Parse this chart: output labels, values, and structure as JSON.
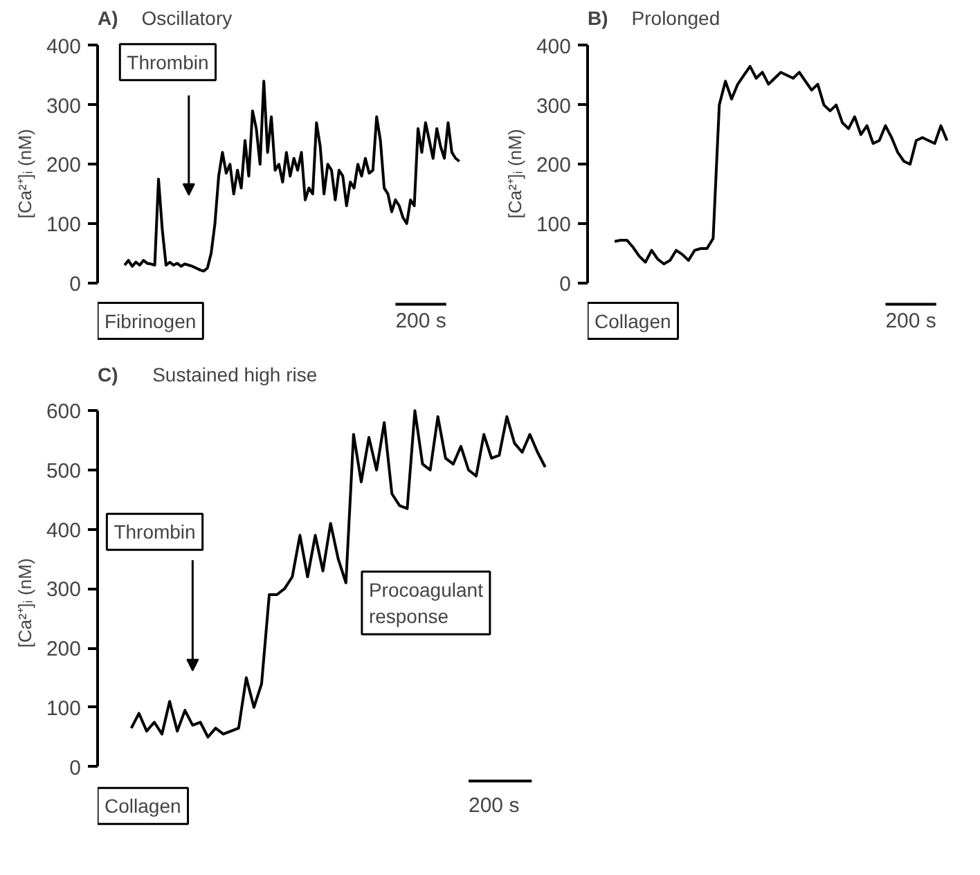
{
  "chart_data": [
    {
      "type": "line",
      "title": "A)",
      "subtitle": "Oscillatory",
      "ylabel": "[Ca²⁺]ᵢ (nM)",
      "tick_labels": "y",
      "ylim": [
        0,
        400
      ],
      "yticks": [
        0,
        100,
        200,
        300,
        400
      ],
      "grid": false,
      "categories": [
        null,
        null,
        null,
        null,
        null,
        null,
        null,
        null,
        null,
        null,
        null,
        null,
        null,
        null,
        null,
        null,
        null,
        null,
        null,
        null,
        null,
        null,
        null,
        null,
        null,
        null,
        null,
        null,
        null,
        null,
        null,
        null,
        null,
        null,
        null,
        null,
        null,
        null,
        null,
        null,
        null,
        null,
        null,
        null,
        null,
        null,
        null,
        null,
        null,
        null,
        null,
        null,
        null,
        null,
        null,
        null,
        null,
        null,
        null,
        null,
        null,
        null,
        null,
        null,
        null,
        null,
        null,
        null,
        null,
        null,
        null,
        null,
        null,
        null,
        null,
        null,
        null,
        null,
        null,
        null,
        null,
        null,
        null,
        null,
        null,
        null,
        null,
        null,
        null,
        null
      ],
      "series": [
        {
          "color": "#000000",
          "values": [
            30,
            38,
            28,
            35,
            30,
            38,
            33,
            32,
            30,
            175,
            90,
            30,
            35,
            30,
            33,
            28,
            32,
            30,
            28,
            25,
            22,
            20,
            25,
            50,
            100,
            180,
            220,
            185,
            200,
            150,
            190,
            160,
            240,
            180,
            290,
            260,
            200,
            340,
            220,
            280,
            190,
            200,
            170,
            220,
            180,
            210,
            190,
            220,
            140,
            160,
            150,
            270,
            230,
            150,
            200,
            190,
            140,
            190,
            180,
            130,
            170,
            160,
            200,
            180,
            210,
            185,
            190,
            280,
            240,
            160,
            150,
            120,
            140,
            130,
            110,
            100,
            140,
            130,
            260,
            220,
            270,
            240,
            210,
            260,
            230,
            210,
            270,
            220,
            210,
            205
          ]
        }
      ],
      "annotations": [
        "Thrombin",
        "Fibrinogen",
        "200 s"
      ]
    },
    {
      "type": "line",
      "title": "B)",
      "subtitle": "Prolonged",
      "ylabel": "[Ca²⁺]ᵢ (nM)",
      "tick_labels": "y",
      "ylim": [
        0,
        400
      ],
      "yticks": [
        0,
        100,
        200,
        300,
        400
      ],
      "grid": false,
      "categories": [
        null,
        null,
        null,
        null,
        null,
        null,
        null,
        null,
        null,
        null,
        null,
        null,
        null,
        null,
        null,
        null,
        null,
        null,
        null,
        null,
        null,
        null,
        null,
        null,
        null,
        null,
        null,
        null,
        null,
        null,
        null,
        null,
        null,
        null,
        null,
        null,
        null,
        null,
        null,
        null,
        null,
        null,
        null,
        null,
        null,
        null,
        null,
        null,
        null,
        null,
        null,
        null,
        null,
        null,
        null
      ],
      "series": [
        {
          "color": "#000000",
          "values": [
            70,
            72,
            72,
            60,
            45,
            35,
            55,
            40,
            32,
            38,
            55,
            48,
            38,
            55,
            58,
            58,
            75,
            300,
            340,
            310,
            335,
            350,
            365,
            345,
            355,
            335,
            345,
            355,
            350,
            345,
            355,
            340,
            325,
            335,
            300,
            290,
            300,
            270,
            260,
            280,
            250,
            265,
            235,
            240,
            265,
            245,
            220,
            205,
            200,
            240,
            245,
            240,
            235,
            265,
            240
          ]
        }
      ],
      "annotations": [
        "Collagen",
        "200 s"
      ]
    },
    {
      "type": "line",
      "title": "C)",
      "subtitle": "Sustained high rise",
      "ylabel": "[Ca²⁺]ᵢ (nM)",
      "tick_labels": "y",
      "ylim": [
        0,
        600
      ],
      "yticks": [
        0,
        100,
        200,
        300,
        400,
        500,
        600
      ],
      "grid": false,
      "categories": [
        null,
        null,
        null,
        null,
        null,
        null,
        null,
        null,
        null,
        null,
        null,
        null,
        null,
        null,
        null,
        null,
        null,
        null,
        null,
        null,
        null,
        null,
        null,
        null,
        null,
        null,
        null,
        null,
        null,
        null,
        null,
        null,
        null,
        null,
        null,
        null,
        null,
        null,
        null,
        null,
        null,
        null,
        null,
        null,
        null,
        null,
        null,
        null,
        null,
        null,
        null,
        null,
        null,
        null,
        null
      ],
      "series": [
        {
          "color": "#000000",
          "values": [
            65,
            90,
            60,
            75,
            55,
            110,
            60,
            95,
            70,
            75,
            50,
            65,
            55,
            60,
            65,
            150,
            100,
            140,
            290,
            290,
            300,
            320,
            390,
            320,
            390,
            330,
            410,
            350,
            310,
            560,
            480,
            555,
            500,
            580,
            460,
            440,
            435,
            600,
            510,
            500,
            590,
            520,
            510,
            540,
            500,
            490,
            560,
            520,
            525,
            590,
            545,
            530,
            560,
            530,
            505
          ]
        }
      ],
      "annotations": [
        "Thrombin",
        "Collagen",
        "Procoagulant response",
        "200 s"
      ]
    }
  ]
}
